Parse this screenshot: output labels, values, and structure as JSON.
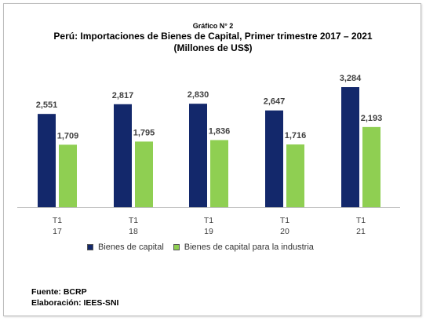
{
  "kicker": "Gráfico N° 2",
  "title": "Perú: Importaciones de Bienes de Capital, Primer trimestre 2017 – 2021",
  "subtitle": "(Millones de US$)",
  "footer": {
    "source": "Fuente: BCRP",
    "prepared": "Elaboración: IEES-SNI"
  },
  "chart_data": {
    "type": "bar",
    "categories": [
      {
        "line1": "T1",
        "line2": "17"
      },
      {
        "line1": "T1",
        "line2": "18"
      },
      {
        "line1": "T1",
        "line2": "19"
      },
      {
        "line1": "T1",
        "line2": "20"
      },
      {
        "line1": "T1",
        "line2": "21"
      }
    ],
    "series": [
      {
        "name": "Bienes de capital",
        "color": "#13286b",
        "values": [
          2551,
          2817,
          2830,
          2647,
          3284
        ],
        "labels": [
          "2,551",
          "2,817",
          "2,830",
          "2,647",
          "3,284"
        ]
      },
      {
        "name": "Bienes de capital para la industria",
        "color": "#8fcf52",
        "values": [
          1709,
          1795,
          1836,
          1716,
          2193
        ],
        "labels": [
          "1,709",
          "1,795",
          "1,836",
          "1,716",
          "2,193"
        ]
      }
    ],
    "ylim": [
      0,
      3950
    ],
    "grid": false,
    "legend_position": "bottom"
  }
}
